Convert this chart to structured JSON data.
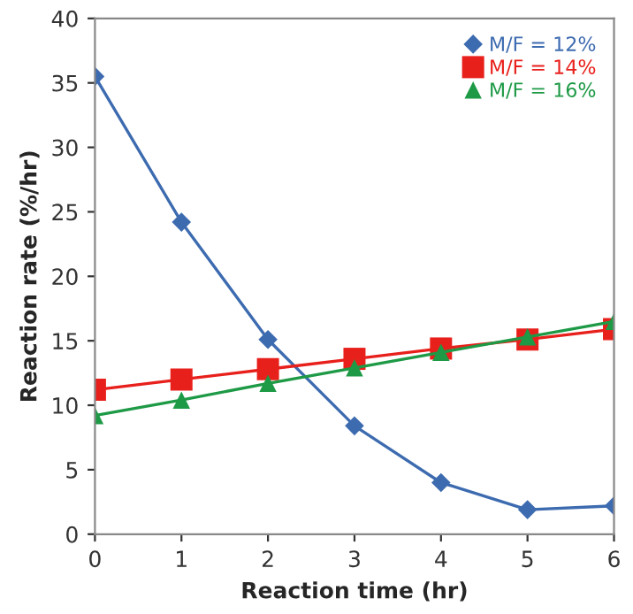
{
  "chart_data": {
    "type": "line",
    "xlabel": "Reaction time (hr)",
    "ylabel": "Reaction rate (%/hr)",
    "x": [
      0,
      1,
      2,
      3,
      4,
      5,
      6
    ],
    "series": [
      {
        "name": "M/F = 12%",
        "color": "#3d6bb0",
        "marker": "diamond",
        "values": [
          35.5,
          24.2,
          15.1,
          8.4,
          4.0,
          1.9,
          2.2
        ]
      },
      {
        "name": "M/F = 14%",
        "color": "#e8201c",
        "marker": "square",
        "values": [
          11.2,
          12.0,
          12.8,
          13.6,
          14.4,
          15.1,
          15.9
        ]
      },
      {
        "name": "M/F = 16%",
        "color": "#1e9a46",
        "marker": "triangle",
        "values": [
          9.2,
          10.4,
          11.7,
          12.9,
          14.1,
          15.3,
          16.5
        ]
      }
    ],
    "xlim": [
      0,
      6
    ],
    "xticks": [
      0,
      1,
      2,
      3,
      4,
      5,
      6
    ],
    "ylim": [
      0,
      40
    ],
    "yticks": [
      0,
      5,
      10,
      15,
      20,
      25,
      30,
      35,
      40
    ],
    "grid": false,
    "legend": "top right",
    "line_style": "solid"
  }
}
